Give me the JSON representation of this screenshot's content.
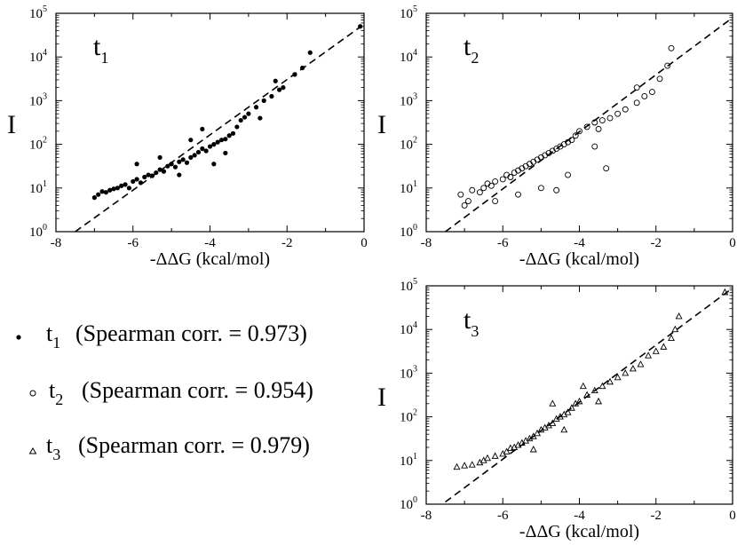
{
  "chart_data": [
    {
      "type": "scatter",
      "panel": "t1",
      "label_base": "t",
      "label_sub": "1",
      "marker": "filled-circle",
      "xlabel": "-ΔΔG (kcal/mol)",
      "ylabel": "I",
      "xlim": [
        -8,
        0
      ],
      "ylim_log10": [
        0,
        5
      ],
      "x_ticks": [
        "-8",
        "-6",
        "-4",
        "-2",
        "0"
      ],
      "y_tick_base": "10",
      "y_tick_exponents": [
        "0",
        "1",
        "2",
        "3",
        "4",
        "5"
      ],
      "fit_line": {
        "style": "dashed",
        "from": [
          -7.5,
          0.0
        ],
        "to": [
          0,
          4.75
        ]
      },
      "series": [
        {
          "name": "t1",
          "points": [
            [
              -7.0,
              0.78
            ],
            [
              -6.9,
              0.85
            ],
            [
              -6.8,
              0.92
            ],
            [
              -6.7,
              0.9
            ],
            [
              -6.6,
              0.95
            ],
            [
              -6.5,
              0.98
            ],
            [
              -6.4,
              1.0
            ],
            [
              -6.3,
              1.05
            ],
            [
              -6.2,
              1.08
            ],
            [
              -6.1,
              1.0
            ],
            [
              -6.0,
              1.15
            ],
            [
              -5.9,
              1.2
            ],
            [
              -5.8,
              1.12
            ],
            [
              -5.7,
              1.25
            ],
            [
              -5.6,
              1.3
            ],
            [
              -5.5,
              1.28
            ],
            [
              -5.4,
              1.35
            ],
            [
              -5.3,
              1.42
            ],
            [
              -5.2,
              1.38
            ],
            [
              -5.1,
              1.5
            ],
            [
              -5.0,
              1.55
            ],
            [
              -4.9,
              1.48
            ],
            [
              -4.8,
              1.6
            ],
            [
              -4.7,
              1.65
            ],
            [
              -4.6,
              1.58
            ],
            [
              -4.5,
              1.7
            ],
            [
              -4.4,
              1.75
            ],
            [
              -4.3,
              1.82
            ],
            [
              -4.2,
              1.9
            ],
            [
              -4.1,
              1.85
            ],
            [
              -4.0,
              1.95
            ],
            [
              -3.9,
              2.0
            ],
            [
              -3.8,
              2.05
            ],
            [
              -3.7,
              2.1
            ],
            [
              -3.6,
              2.12
            ],
            [
              -3.5,
              2.2
            ],
            [
              -3.4,
              2.25
            ],
            [
              -3.3,
              2.4
            ],
            [
              -3.2,
              2.55
            ],
            [
              -3.1,
              2.62
            ],
            [
              -3.0,
              2.7
            ],
            [
              -2.8,
              2.85
            ],
            [
              -2.6,
              3.0
            ],
            [
              -2.4,
              3.1
            ],
            [
              -2.2,
              3.25
            ],
            [
              -2.1,
              3.3
            ],
            [
              -1.8,
              3.6
            ],
            [
              -1.6,
              3.75
            ],
            [
              -1.4,
              4.1
            ],
            [
              -0.1,
              4.7
            ],
            [
              -5.9,
              1.55
            ],
            [
              -5.3,
              1.7
            ],
            [
              -4.5,
              2.1
            ],
            [
              -4.8,
              1.3
            ],
            [
              -3.9,
              1.55
            ],
            [
              -4.2,
              2.35
            ],
            [
              -3.6,
              1.8
            ],
            [
              -2.7,
              2.6
            ],
            [
              -2.3,
              3.45
            ]
          ]
        }
      ]
    },
    {
      "type": "scatter",
      "panel": "t2",
      "label_base": "t",
      "label_sub": "2",
      "marker": "open-circle",
      "xlabel": "-ΔΔG (kcal/mol)",
      "ylabel": "I",
      "xlim": [
        -8,
        0
      ],
      "ylim_log10": [
        0,
        5
      ],
      "x_ticks": [
        "-8",
        "-6",
        "-4",
        "-2",
        "0"
      ],
      "y_tick_base": "10",
      "y_tick_exponents": [
        "0",
        "1",
        "2",
        "3",
        "4",
        "5"
      ],
      "fit_line": {
        "style": "dashed",
        "from": [
          -7.5,
          0.0
        ],
        "to": [
          0,
          4.9
        ]
      },
      "series": [
        {
          "name": "t2",
          "points": [
            [
              -7.1,
              0.85
            ],
            [
              -7.0,
              0.6
            ],
            [
              -6.9,
              0.7
            ],
            [
              -6.8,
              0.95
            ],
            [
              -6.6,
              0.9
            ],
            [
              -6.5,
              1.0
            ],
            [
              -6.4,
              1.1
            ],
            [
              -6.3,
              1.05
            ],
            [
              -6.2,
              1.15
            ],
            [
              -6.0,
              1.2
            ],
            [
              -5.9,
              1.3
            ],
            [
              -5.8,
              1.25
            ],
            [
              -5.7,
              1.35
            ],
            [
              -5.6,
              1.4
            ],
            [
              -5.5,
              1.45
            ],
            [
              -5.4,
              1.5
            ],
            [
              -5.3,
              1.55
            ],
            [
              -5.2,
              1.6
            ],
            [
              -5.1,
              1.65
            ],
            [
              -5.0,
              1.7
            ],
            [
              -4.9,
              1.75
            ],
            [
              -4.8,
              1.8
            ],
            [
              -4.7,
              1.85
            ],
            [
              -4.6,
              1.9
            ],
            [
              -4.5,
              1.95
            ],
            [
              -4.4,
              2.0
            ],
            [
              -4.3,
              2.05
            ],
            [
              -4.2,
              2.1
            ],
            [
              -4.1,
              2.2
            ],
            [
              -4.0,
              2.3
            ],
            [
              -3.8,
              2.4
            ],
            [
              -3.6,
              2.5
            ],
            [
              -3.4,
              2.55
            ],
            [
              -3.2,
              2.6
            ],
            [
              -3.0,
              2.7
            ],
            [
              -2.8,
              2.8
            ],
            [
              -2.5,
              2.95
            ],
            [
              -2.3,
              3.1
            ],
            [
              -2.1,
              3.2
            ],
            [
              -1.9,
              3.5
            ],
            [
              -1.7,
              3.8
            ],
            [
              -1.6,
              4.2
            ],
            [
              -6.2,
              0.7
            ],
            [
              -5.0,
              1.0
            ],
            [
              -4.6,
              0.95
            ],
            [
              -5.6,
              0.85
            ],
            [
              -4.3,
              1.3
            ],
            [
              -3.6,
              1.95
            ],
            [
              -3.5,
              2.35
            ],
            [
              -2.5,
              3.3
            ],
            [
              -3.3,
              1.45
            ]
          ]
        }
      ]
    },
    {
      "type": "scatter",
      "panel": "t3",
      "label_base": "t",
      "label_sub": "3",
      "marker": "open-triangle",
      "xlabel": "-ΔΔG (kcal/mol)",
      "ylabel": "I",
      "xlim": [
        -8,
        0
      ],
      "ylim_log10": [
        0,
        5
      ],
      "x_ticks": [
        "-8",
        "-6",
        "-4",
        "-2",
        "0"
      ],
      "y_tick_base": "10",
      "y_tick_exponents": [
        "0",
        "1",
        "2",
        "3",
        "4",
        "5"
      ],
      "fit_line": {
        "style": "dashed",
        "from": [
          -7.5,
          0.05
        ],
        "to": [
          0,
          4.95
        ]
      },
      "series": [
        {
          "name": "t3",
          "points": [
            [
              -7.2,
              0.85
            ],
            [
              -7.0,
              0.88
            ],
            [
              -6.8,
              0.9
            ],
            [
              -6.6,
              0.95
            ],
            [
              -6.5,
              1.0
            ],
            [
              -6.4,
              1.05
            ],
            [
              -6.2,
              1.1
            ],
            [
              -6.0,
              1.15
            ],
            [
              -5.9,
              1.2
            ],
            [
              -5.8,
              1.28
            ],
            [
              -5.7,
              1.3
            ],
            [
              -5.6,
              1.35
            ],
            [
              -5.5,
              1.4
            ],
            [
              -5.4,
              1.45
            ],
            [
              -5.3,
              1.5
            ],
            [
              -5.2,
              1.55
            ],
            [
              -5.1,
              1.62
            ],
            [
              -5.0,
              1.7
            ],
            [
              -4.9,
              1.75
            ],
            [
              -4.8,
              1.8
            ],
            [
              -4.7,
              1.85
            ],
            [
              -4.6,
              1.95
            ],
            [
              -4.5,
              2.0
            ],
            [
              -4.4,
              2.05
            ],
            [
              -4.3,
              2.1
            ],
            [
              -4.2,
              2.2
            ],
            [
              -4.1,
              2.3
            ],
            [
              -4.0,
              2.35
            ],
            [
              -3.8,
              2.5
            ],
            [
              -3.6,
              2.6
            ],
            [
              -3.4,
              2.7
            ],
            [
              -3.2,
              2.8
            ],
            [
              -3.0,
              2.9
            ],
            [
              -2.8,
              3.0
            ],
            [
              -2.6,
              3.1
            ],
            [
              -2.4,
              3.2
            ],
            [
              -2.2,
              3.4
            ],
            [
              -2.0,
              3.5
            ],
            [
              -1.8,
              3.6
            ],
            [
              -1.6,
              3.8
            ],
            [
              -1.5,
              4.0
            ],
            [
              -1.4,
              4.3
            ],
            [
              -0.2,
              4.85
            ],
            [
              -4.7,
              2.3
            ],
            [
              -3.9,
              2.7
            ],
            [
              -4.4,
              1.7
            ],
            [
              -5.2,
              1.25
            ],
            [
              -3.5,
              2.35
            ]
          ]
        }
      ]
    }
  ],
  "legend": [
    {
      "marker": "filled-circle",
      "label_base": "t",
      "label_sub": "1",
      "text": "(Spearman corr. = 0.973)"
    },
    {
      "marker": "open-circle",
      "label_base": "t",
      "label_sub": "2",
      "text": "(Spearman corr. = 0.954)"
    },
    {
      "marker": "open-triangle",
      "label_base": "t",
      "label_sub": "3",
      "text": "(Spearman corr. = 0.979)"
    }
  ]
}
